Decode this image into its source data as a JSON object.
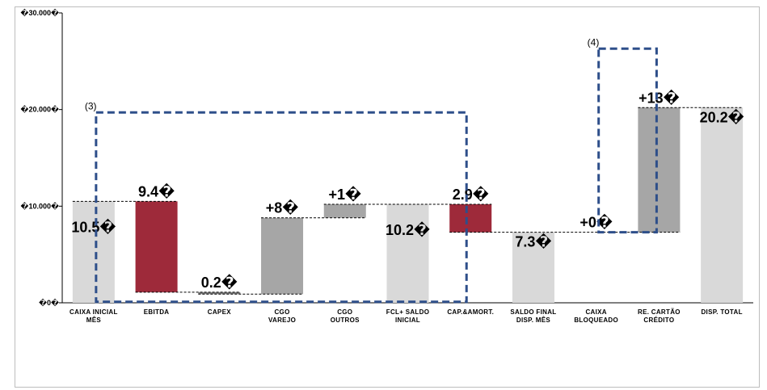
{
  "chart_data": {
    "type": "bar",
    "subtype": "waterfall",
    "categories": [
      [
        "Caixa Inicial",
        "Mês"
      ],
      [
        "EBITDA"
      ],
      [
        "CAPEX"
      ],
      [
        "CGO",
        "Varejo"
      ],
      [
        "CGO",
        "Outros"
      ],
      [
        "FCL+ Saldo",
        "Inicial"
      ],
      [
        "Cap.&Amort."
      ],
      [
        "Saldo Final",
        "Disp. Mês"
      ],
      [
        "Caixa",
        "Bloqueado"
      ],
      [
        "Re. Cartão",
        "Crédito"
      ],
      [
        "Disp. Total"
      ]
    ],
    "bars": [
      {
        "low": 0,
        "high": 10500,
        "color": "#d9d9d9",
        "label": "10.5�",
        "label_pos": "inside-mid"
      },
      {
        "low": 1100,
        "high": 10500,
        "color": "#9e2a3a",
        "label": "9.4�",
        "label_pos": "above"
      },
      {
        "low": 900,
        "high": 1100,
        "color": "#7f7f7f",
        "label": "0.2�",
        "label_pos": "above"
      },
      {
        "low": 900,
        "high": 8800,
        "color": "#a6a6a6",
        "label": "+8�",
        "label_pos": "above"
      },
      {
        "low": 8800,
        "high": 10200,
        "color": "#a6a6a6",
        "label": "+1�",
        "label_pos": "above"
      },
      {
        "low": 0,
        "high": 10200,
        "color": "#d9d9d9",
        "label": "10.2�",
        "label_pos": "inside-mid"
      },
      {
        "low": 7300,
        "high": 10200,
        "color": "#9e2a3a",
        "label": "2.9�",
        "label_pos": "above"
      },
      {
        "low": 0,
        "high": 7300,
        "color": "#d9d9d9",
        "label": "7.3�",
        "label_pos": "inside-top"
      },
      {
        "low": 7300,
        "high": 7300,
        "color": "#a6a6a6",
        "label": "+0�",
        "label_pos": "above"
      },
      {
        "low": 7300,
        "high": 20200,
        "color": "#a6a6a6",
        "label": "+13�",
        "label_pos": "above"
      },
      {
        "low": 0,
        "high": 20200,
        "color": "#d9d9d9",
        "label": "20.2�",
        "label_pos": "inside-top"
      }
    ],
    "connectors": [
      {
        "from": 0,
        "to": 1,
        "y": 10500
      },
      {
        "from": 1,
        "to": 2,
        "y": 1100
      },
      {
        "from": 2,
        "to": 3,
        "y": 900
      },
      {
        "from": 3,
        "to": 4,
        "y": 8800
      },
      {
        "from": 4,
        "to": 6,
        "y": 10200
      },
      {
        "from": 6,
        "to": 9,
        "y": 7300
      },
      {
        "from": 9,
        "to": 10,
        "y": 20200
      }
    ],
    "yticks": [
      {
        "value": 0,
        "label": "�0�"
      },
      {
        "value": 10000,
        "label": "�10.000�"
      },
      {
        "value": 20000,
        "label": "�20.000�"
      },
      {
        "value": 30000,
        "label": "�30.000�"
      }
    ],
    "ylim": [
      0,
      30000
    ],
    "annotations": [
      {
        "text": "(3)",
        "x_from": 0.5,
        "x_to": 6.5,
        "y_low": 100,
        "y_high": 19700
      },
      {
        "text": "(4)",
        "x_from": 8.5,
        "x_to": 9.5,
        "y_low": 7300,
        "y_high": 26300
      }
    ],
    "colors": {
      "total": "#d9d9d9",
      "negative": "#9e2a3a",
      "positive": "#a6a6a6",
      "dashed_box": "#2e4f8a"
    },
    "grid": false,
    "legend": "none"
  }
}
